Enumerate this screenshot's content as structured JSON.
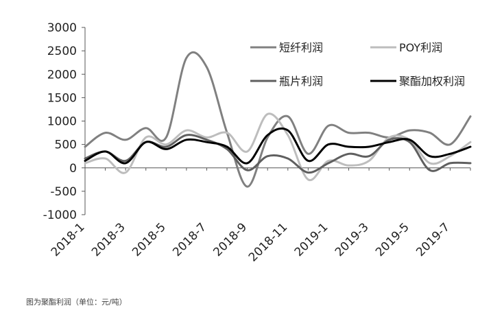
{
  "chart_data": {
    "type": "line",
    "title": "",
    "xlabel": "",
    "ylabel": "",
    "ylim": [
      -1000,
      3000
    ],
    "yticks": [
      3000,
      2500,
      2000,
      1500,
      1000,
      500,
      0,
      -500,
      -1000
    ],
    "xticks": [
      "2018-1",
      "2018-3",
      "2018-5",
      "2018-7",
      "2018-9",
      "2018-11",
      "2019-1",
      "2019-3",
      "2019-5",
      "2019-7"
    ],
    "x": [
      "2018-1",
      "2018-2",
      "2018-3",
      "2018-4",
      "2018-5",
      "2018-6",
      "2018-7",
      "2018-8",
      "2018-9",
      "2018-10",
      "2018-11",
      "2018-12",
      "2019-1",
      "2019-2",
      "2019-3",
      "2019-4",
      "2019-5",
      "2019-6",
      "2019-7",
      "2019-8"
    ],
    "grid": false,
    "legend": "top-right",
    "series": [
      {
        "name": "短纤利润",
        "color": "#808080",
        "width": 3,
        "values": [
          450,
          750,
          600,
          850,
          650,
          2350,
          2150,
          750,
          -400,
          650,
          1100,
          300,
          900,
          750,
          750,
          650,
          800,
          750,
          500,
          1100
        ]
      },
      {
        "name": "POY利润",
        "color": "#bdbdbd",
        "width": 3,
        "values": [
          100,
          200,
          -100,
          650,
          500,
          800,
          650,
          750,
          350,
          1150,
          700,
          -250,
          150,
          50,
          150,
          650,
          600,
          100,
          250,
          550
        ]
      },
      {
        "name": "瓶片利润",
        "color": "#5f5f5f",
        "width": 3,
        "values": [
          200,
          350,
          150,
          550,
          450,
          700,
          600,
          400,
          -50,
          250,
          200,
          -100,
          100,
          300,
          250,
          600,
          550,
          -50,
          100,
          100
        ]
      },
      {
        "name": "聚酯加权利润",
        "color": "#000000",
        "width": 3,
        "values": [
          150,
          350,
          100,
          550,
          400,
          600,
          550,
          450,
          100,
          700,
          800,
          150,
          500,
          450,
          450,
          550,
          600,
          250,
          300,
          450
        ]
      }
    ]
  },
  "caption": "图为聚酯利润（单位：元/吨）"
}
